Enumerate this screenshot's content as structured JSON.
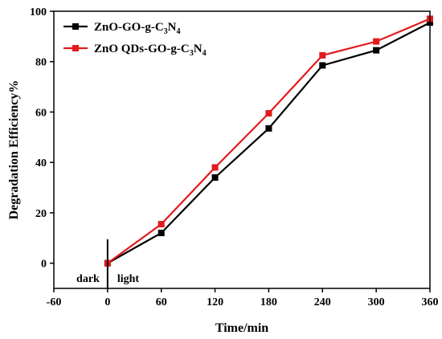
{
  "chart_data": {
    "type": "line",
    "xlabel": "Time/min",
    "ylabel": "Degradation Efficiency%",
    "xlim": [
      -60,
      360
    ],
    "ylim": [
      -10,
      100
    ],
    "xticks": [
      -60,
      0,
      60,
      120,
      180,
      240,
      300,
      360
    ],
    "yticks": [
      0,
      20,
      40,
      60,
      80,
      100
    ],
    "x": [
      0,
      60,
      120,
      180,
      240,
      300,
      360
    ],
    "series": [
      {
        "name_main": "ZnO-GO-g-C",
        "name_sub1": "3",
        "name_mid": "N",
        "name_sub2": "4",
        "color": "#000000",
        "values": [
          0,
          12,
          34,
          53.5,
          78.5,
          84.5,
          95.5
        ]
      },
      {
        "name_main": "ZnO QDs-GO-g-C",
        "name_sub1": "3",
        "name_mid": "N",
        "name_sub2": "4",
        "color": "#e31a1c",
        "values": [
          0,
          15.5,
          38,
          59.5,
          82.5,
          88,
          97
        ]
      }
    ],
    "annotations": {
      "dark": "dark",
      "light": "light",
      "divider_x": 0,
      "divider_y_top": 9.5
    },
    "legend_position": "top-left",
    "marker": "square",
    "grid": false
  }
}
